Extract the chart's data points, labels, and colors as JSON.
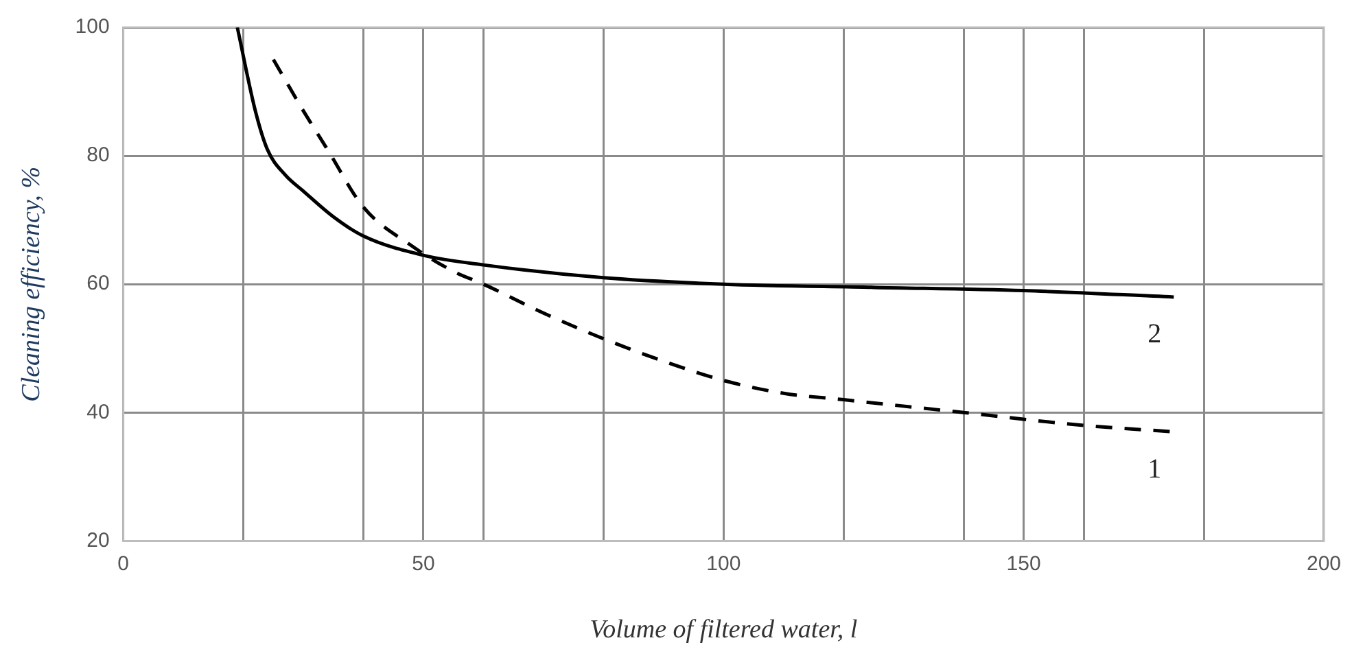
{
  "chart_data": {
    "type": "line",
    "xlabel": "Volume of filtered water, l",
    "ylabel": "Cleaning efficiency, %",
    "xlim": [
      0,
      200
    ],
    "ylim": [
      20,
      100
    ],
    "xticks": [
      0,
      {
        "value": 20,
        "label": null
      },
      {
        "value": 40,
        "label": null
      },
      50,
      {
        "value": 60,
        "label": null
      },
      {
        "value": 80,
        "label": null
      },
      100,
      {
        "value": 120,
        "label": null
      },
      {
        "value": 140,
        "label": null
      },
      150,
      {
        "value": 160,
        "label": null
      },
      {
        "value": 180,
        "label": null
      },
      200
    ],
    "yticks": [
      20,
      40,
      60,
      80,
      100
    ],
    "grid": true,
    "legend": false,
    "marker": "none",
    "series": [
      {
        "name": "1",
        "color": "#000000",
        "line_style": "dashed",
        "x": [
          25,
          30,
          34,
          40,
          48,
          55,
          60,
          70,
          80,
          90,
          100,
          110,
          120,
          140,
          160,
          175
        ],
        "values": [
          95,
          87,
          81,
          72,
          66,
          62,
          60,
          55.5,
          51.5,
          48,
          45,
          43,
          42,
          40,
          38,
          37
        ]
      },
      {
        "name": "2",
        "color": "#000000",
        "line_style": "solid",
        "x": [
          19,
          22,
          24,
          27,
          30,
          35,
          40,
          50,
          60,
          80,
          100,
          125,
          150,
          175
        ],
        "values": [
          100,
          87,
          81,
          77,
          74.5,
          70.5,
          67.5,
          64.5,
          63,
          61,
          60,
          59.5,
          59,
          58
        ]
      }
    ]
  }
}
